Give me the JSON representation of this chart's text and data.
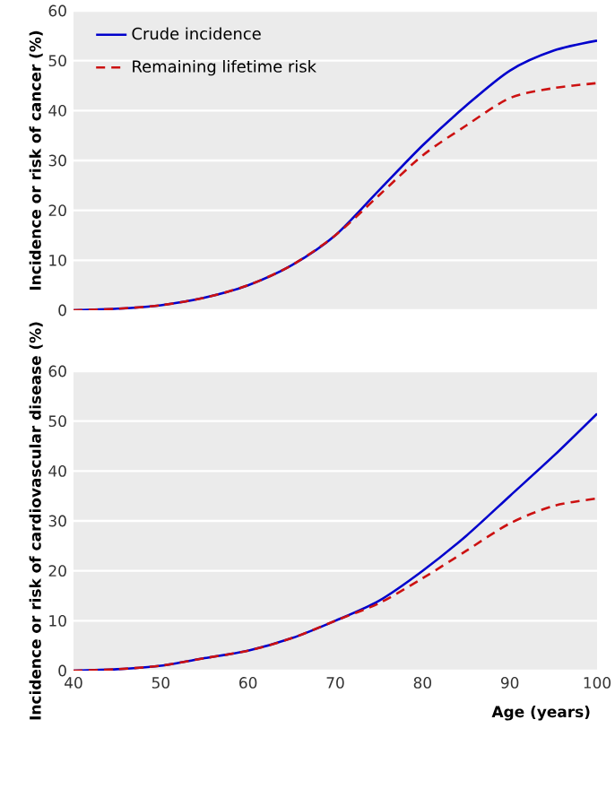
{
  "chart_data": [
    {
      "type": "line",
      "ylabel": "Incidence or risk of cancer (%)",
      "x": [
        40,
        45,
        50,
        55,
        60,
        65,
        70,
        75,
        80,
        85,
        90,
        95,
        100
      ],
      "series": [
        {
          "name": "Crude incidence",
          "color": "#0000cc",
          "line_style": "solid",
          "values": [
            0,
            0.3,
            1,
            2.5,
            5,
            9,
            15,
            24,
            33,
            41,
            48,
            52,
            54
          ]
        },
        {
          "name": "Remaining lifetime risk",
          "color": "#cc1111",
          "line_style": "dashed",
          "values": [
            0,
            0.3,
            1,
            2.5,
            5,
            9,
            15,
            23,
            31,
            37,
            42.5,
            44.5,
            45.5
          ]
        }
      ],
      "xlim": [
        40,
        100
      ],
      "xticks": [
        40,
        50,
        60,
        70,
        80,
        90,
        100
      ],
      "ylim": [
        0,
        60
      ],
      "yticks": [
        0,
        10,
        20,
        30,
        40,
        50,
        60
      ],
      "grid": "y",
      "legend": "top left",
      "tick_labels": "y"
    },
    {
      "type": "line",
      "xlabel": "Age (years)",
      "ylabel": "Incidence or risk of cardiovascular disease (%)",
      "x": [
        40,
        45,
        50,
        55,
        60,
        65,
        70,
        75,
        80,
        85,
        90,
        95,
        100
      ],
      "series": [
        {
          "color": "#0000cc",
          "line_style": "solid",
          "values": [
            0,
            0.3,
            1,
            2.5,
            4,
            6.5,
            10,
            14,
            20,
            27,
            35,
            43,
            51.5
          ]
        },
        {
          "color": "#cc1111",
          "line_style": "dashed",
          "values": [
            0,
            0.3,
            1,
            2.5,
            4,
            6.5,
            10,
            13.5,
            18.5,
            24,
            29.5,
            33,
            34.5
          ]
        }
      ],
      "xlim": [
        40,
        100
      ],
      "xticks": [
        40,
        50,
        60,
        70,
        80,
        90,
        100
      ],
      "ylim": [
        0,
        60
      ],
      "yticks": [
        0,
        10,
        20,
        30,
        40,
        50,
        60
      ],
      "grid": "y"
    }
  ]
}
